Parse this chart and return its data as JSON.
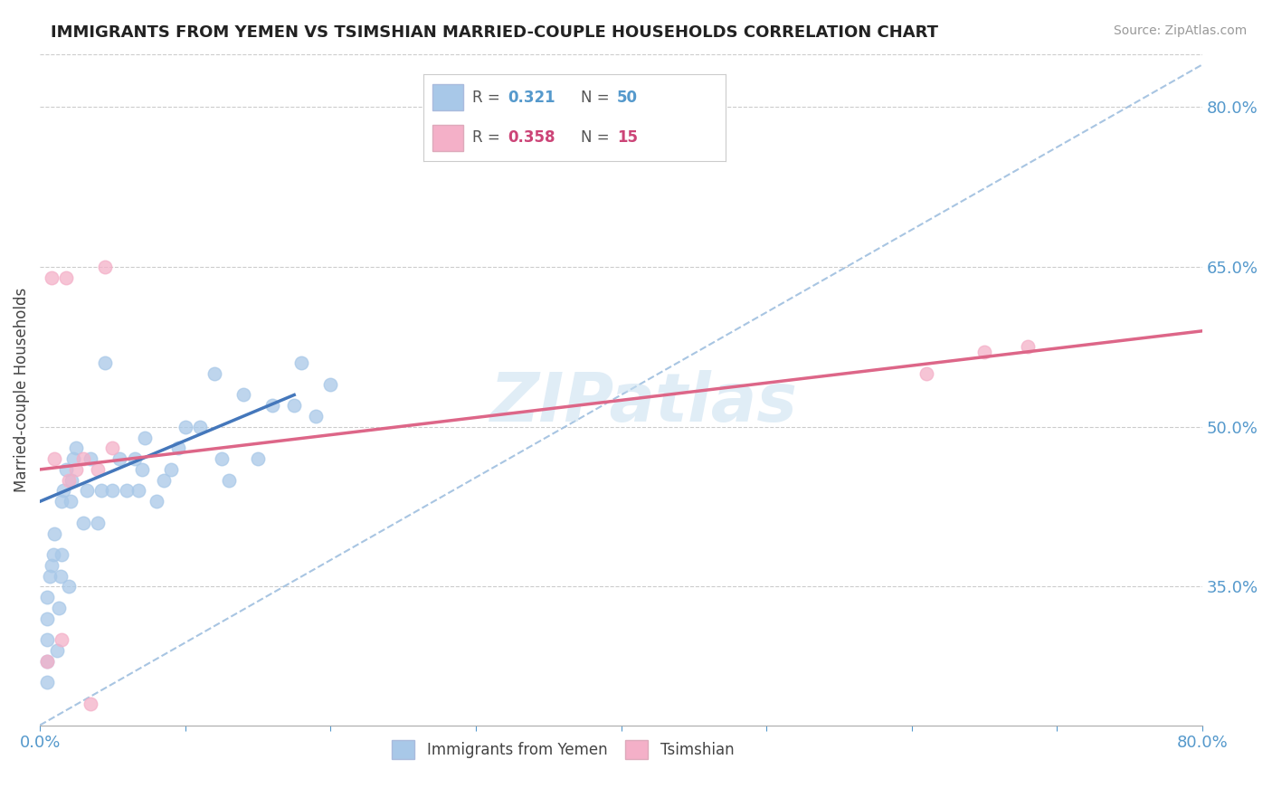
{
  "title": "IMMIGRANTS FROM YEMEN VS TSIMSHIAN MARRIED-COUPLE HOUSEHOLDS CORRELATION CHART",
  "source": "Source: ZipAtlas.com",
  "ylabel": "Married-couple Households",
  "xlim": [
    0.0,
    0.8
  ],
  "ylim": [
    0.22,
    0.85
  ],
  "x_ticks": [
    0.0,
    0.1,
    0.2,
    0.3,
    0.4,
    0.5,
    0.6,
    0.7,
    0.8
  ],
  "x_tick_labels": [
    "0.0%",
    "",
    "",
    "",
    "",
    "",
    "",
    "",
    "80.0%"
  ],
  "y_tick_labels_right": [
    "80.0%",
    "65.0%",
    "50.0%",
    "35.0%"
  ],
  "y_tick_positions_right": [
    0.8,
    0.65,
    0.5,
    0.35
  ],
  "blue_color": "#a8c8e8",
  "pink_color": "#f4b0c8",
  "line_blue": "#4477bb",
  "line_pink": "#dd6688",
  "line_dashed_color": "#99bbdd",
  "watermark": "ZIPatlas",
  "blue_scatter_x": [
    0.005,
    0.005,
    0.005,
    0.005,
    0.005,
    0.007,
    0.008,
    0.009,
    0.01,
    0.012,
    0.013,
    0.014,
    0.015,
    0.015,
    0.016,
    0.018,
    0.02,
    0.021,
    0.022,
    0.023,
    0.025,
    0.03,
    0.032,
    0.035,
    0.04,
    0.042,
    0.045,
    0.05,
    0.055,
    0.06,
    0.065,
    0.068,
    0.07,
    0.072,
    0.08,
    0.085,
    0.09,
    0.095,
    0.1,
    0.11,
    0.12,
    0.125,
    0.13,
    0.14,
    0.15,
    0.16,
    0.175,
    0.18,
    0.19,
    0.2
  ],
  "blue_scatter_y": [
    0.26,
    0.28,
    0.3,
    0.32,
    0.34,
    0.36,
    0.37,
    0.38,
    0.4,
    0.29,
    0.33,
    0.36,
    0.38,
    0.43,
    0.44,
    0.46,
    0.35,
    0.43,
    0.45,
    0.47,
    0.48,
    0.41,
    0.44,
    0.47,
    0.41,
    0.44,
    0.56,
    0.44,
    0.47,
    0.44,
    0.47,
    0.44,
    0.46,
    0.49,
    0.43,
    0.45,
    0.46,
    0.48,
    0.5,
    0.5,
    0.55,
    0.47,
    0.45,
    0.53,
    0.47,
    0.52,
    0.52,
    0.56,
    0.51,
    0.54
  ],
  "pink_scatter_x": [
    0.005,
    0.008,
    0.01,
    0.015,
    0.018,
    0.02,
    0.025,
    0.03,
    0.035,
    0.04,
    0.045,
    0.05,
    0.61,
    0.65,
    0.68
  ],
  "pink_scatter_y": [
    0.28,
    0.64,
    0.47,
    0.3,
    0.64,
    0.45,
    0.46,
    0.47,
    0.24,
    0.46,
    0.65,
    0.48,
    0.55,
    0.57,
    0.575
  ],
  "blue_line_x": [
    0.0,
    0.175
  ],
  "blue_line_y": [
    0.43,
    0.53
  ],
  "pink_line_x": [
    0.0,
    0.8
  ],
  "pink_line_y": [
    0.46,
    0.59
  ],
  "dashed_line_x": [
    0.0,
    0.8
  ],
  "dashed_line_y": [
    0.22,
    0.84
  ]
}
